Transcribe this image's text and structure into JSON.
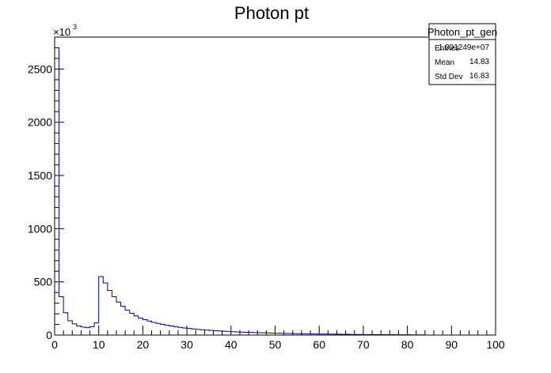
{
  "chart_data": {
    "type": "bar",
    "title": "Photon pt",
    "xlabel": "",
    "ylabel": "",
    "xlim": [
      0,
      100
    ],
    "ylim": [
      0,
      2800
    ],
    "y_multiplier_label": "×10",
    "y_multiplier_exponent": "3",
    "x_ticks": [
      0,
      10,
      20,
      30,
      40,
      50,
      60,
      70,
      80,
      90,
      100
    ],
    "y_ticks": [
      0,
      500,
      1000,
      1500,
      2000,
      2500
    ],
    "bin_width": 1,
    "series": [
      {
        "name": "Photon_pt_gen",
        "line_color": "#000099",
        "bin_edges_start": 0,
        "values": [
          2700,
          360,
          210,
          135,
          105,
          85,
          75,
          70,
          80,
          115,
          550,
          490,
          420,
          360,
          310,
          270,
          235,
          205,
          180,
          160,
          145,
          132,
          120,
          110,
          100,
          92,
          85,
          78,
          72,
          67,
          62,
          58,
          54,
          50,
          47,
          44,
          41,
          38,
          36,
          34,
          32,
          30,
          28,
          26,
          25,
          23,
          22,
          21,
          20,
          19,
          18,
          17,
          16,
          15,
          14,
          13,
          12,
          12,
          11,
          10,
          10,
          9,
          9,
          8,
          8,
          7,
          7,
          6,
          6,
          6,
          5,
          5,
          5,
          4,
          4,
          4,
          4,
          3,
          3,
          3,
          3,
          2,
          2,
          2,
          0,
          0,
          0,
          0,
          0,
          0,
          0,
          0,
          0,
          0,
          0,
          0,
          0,
          0,
          0,
          0
        ]
      }
    ],
    "stats_box": {
      "title": "Photon_pt_gen",
      "rows": [
        {
          "label": "Entries",
          "value": "1.001249e+07"
        },
        {
          "label": "Mean",
          "value": "14.83"
        },
        {
          "label": "Std Dev",
          "value": "16.83"
        }
      ]
    }
  }
}
